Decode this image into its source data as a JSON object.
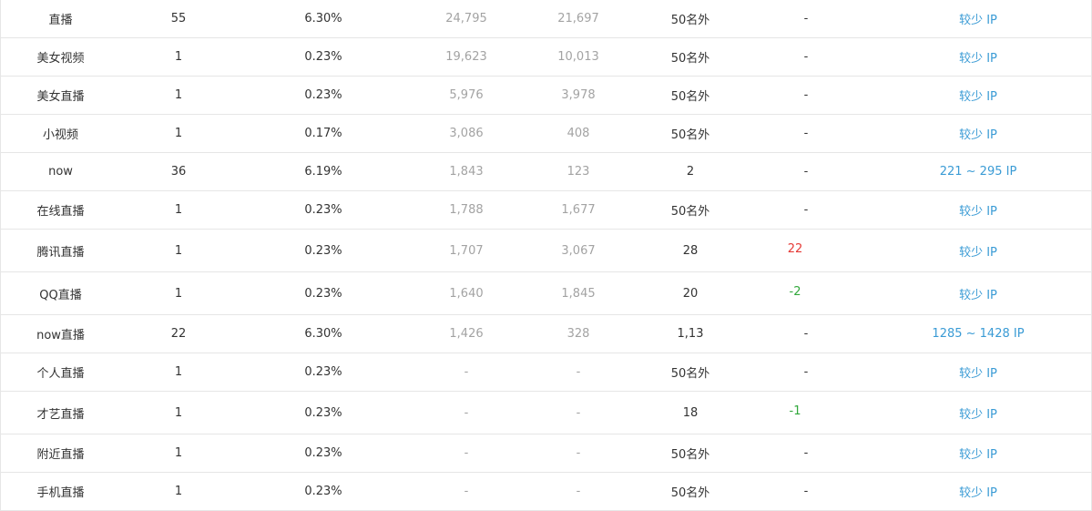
{
  "colors": {
    "border": "#e6e6e6",
    "text": "#333333",
    "muted": "#a3a3a3",
    "link": "#3a9bd5",
    "up": "#e53935",
    "down": "#31a83b"
  },
  "rows": [
    {
      "keyword": "直播",
      "count": "55",
      "share": "6.30%",
      "index1": "24,795",
      "index2": "21,697",
      "rank": "50名外",
      "change": "-",
      "change_dir": "none",
      "ip": "较少 IP"
    },
    {
      "keyword": "美女视频",
      "count": "1",
      "share": "0.23%",
      "index1": "19,623",
      "index2": "10,013",
      "rank": "50名外",
      "change": "-",
      "change_dir": "none",
      "ip": "较少 IP"
    },
    {
      "keyword": "美女直播",
      "count": "1",
      "share": "0.23%",
      "index1": "5,976",
      "index2": "3,978",
      "rank": "50名外",
      "change": "-",
      "change_dir": "none",
      "ip": "较少 IP"
    },
    {
      "keyword": "小视频",
      "count": "1",
      "share": "0.17%",
      "index1": "3,086",
      "index2": "408",
      "rank": "50名外",
      "change": "-",
      "change_dir": "none",
      "ip": "较少 IP"
    },
    {
      "keyword": "now",
      "count": "36",
      "share": "6.19%",
      "index1": "1,843",
      "index2": "123",
      "rank": "2",
      "change": "-",
      "change_dir": "none",
      "ip": "221 ~ 295 IP"
    },
    {
      "keyword": "在线直播",
      "count": "1",
      "share": "0.23%",
      "index1": "1,788",
      "index2": "1,677",
      "rank": "50名外",
      "change": "-",
      "change_dir": "none",
      "ip": "较少 IP"
    },
    {
      "keyword": "腾讯直播",
      "count": "1",
      "share": "0.23%",
      "index1": "1,707",
      "index2": "3,067",
      "rank": "28",
      "change": "22",
      "change_dir": "up",
      "ip": "较少 IP"
    },
    {
      "keyword": "QQ直播",
      "count": "1",
      "share": "0.23%",
      "index1": "1,640",
      "index2": "1,845",
      "rank": "20",
      "change": "-2",
      "change_dir": "down",
      "ip": "较少 IP"
    },
    {
      "keyword": "now直播",
      "count": "22",
      "share": "6.30%",
      "index1": "1,426",
      "index2": "328",
      "rank": "1,13",
      "change": "-",
      "change_dir": "none",
      "ip": "1285 ~ 1428 IP"
    },
    {
      "keyword": "个人直播",
      "count": "1",
      "share": "0.23%",
      "index1": "-",
      "index2": "-",
      "rank": "50名外",
      "change": "-",
      "change_dir": "none",
      "ip": "较少 IP"
    },
    {
      "keyword": "才艺直播",
      "count": "1",
      "share": "0.23%",
      "index1": "-",
      "index2": "-",
      "rank": "18",
      "change": "-1",
      "change_dir": "down",
      "ip": "较少 IP"
    },
    {
      "keyword": "附近直播",
      "count": "1",
      "share": "0.23%",
      "index1": "-",
      "index2": "-",
      "rank": "50名外",
      "change": "-",
      "change_dir": "none",
      "ip": "较少 IP"
    },
    {
      "keyword": "手机直播",
      "count": "1",
      "share": "0.23%",
      "index1": "-",
      "index2": "-",
      "rank": "50名外",
      "change": "-",
      "change_dir": "none",
      "ip": "较少 IP"
    }
  ]
}
